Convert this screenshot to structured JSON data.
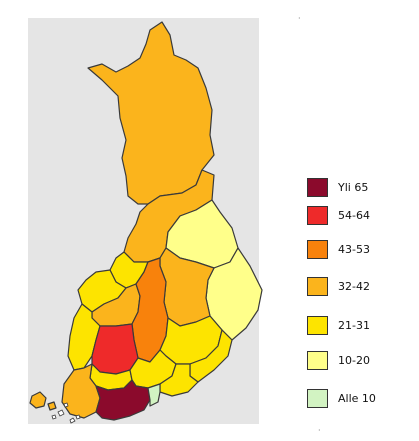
{
  "colors": {
    "panel": "#e5e5e5",
    "border": "#3a3a3a"
  },
  "legend": {
    "items": [
      {
        "label": "Yli 65",
        "color": "#8b0a2c"
      },
      {
        "label": " 54-64",
        "color": "#ee2a2a"
      },
      {
        "label": "43-53",
        "color": "#f8820c"
      },
      {
        "label": " 32-42",
        "color": "#fbb41c"
      },
      {
        "label": "21-31",
        "color": "#fde400"
      },
      {
        "label": "10-20",
        "color": "#ffff8a"
      },
      {
        "label": " Alle 10",
        "color": "#d2f3c2"
      }
    ]
  },
  "regions": [
    {
      "name": "lappi",
      "color": "#fbb41c"
    },
    {
      "name": "pohjois-pohjanmaa",
      "color": "#fbb41c"
    },
    {
      "name": "kainuu",
      "color": "#ffff8a"
    },
    {
      "name": "pohjois-karjala",
      "color": "#ffff8a"
    },
    {
      "name": "pohjois-savo",
      "color": "#fbb41c"
    },
    {
      "name": "keski-pohjanmaa",
      "color": "#fde400"
    },
    {
      "name": "pohjanmaa",
      "color": "#fde400"
    },
    {
      "name": "etela-pohjanmaa",
      "color": "#fbb41c"
    },
    {
      "name": "keski-suomi",
      "color": "#f8820c"
    },
    {
      "name": "satakunta",
      "color": "#fde400"
    },
    {
      "name": "pirkanmaa",
      "color": "#ee2a2a"
    },
    {
      "name": "etela-savo",
      "color": "#fde400"
    },
    {
      "name": "etela-karjala",
      "color": "#fde400"
    },
    {
      "name": "kanta-hame",
      "color": "#fde400"
    },
    {
      "name": "paijat-hame",
      "color": "#fde400"
    },
    {
      "name": "kymenlaakso",
      "color": "#fde400"
    },
    {
      "name": "varsinais-suomi",
      "color": "#fbb41c"
    },
    {
      "name": "uusimaa",
      "color": "#8b0a2c"
    },
    {
      "name": "ita-uusimaa",
      "color": "#d2f3c2"
    },
    {
      "name": "ahvenanmaa",
      "color": "#fbb41c"
    }
  ]
}
